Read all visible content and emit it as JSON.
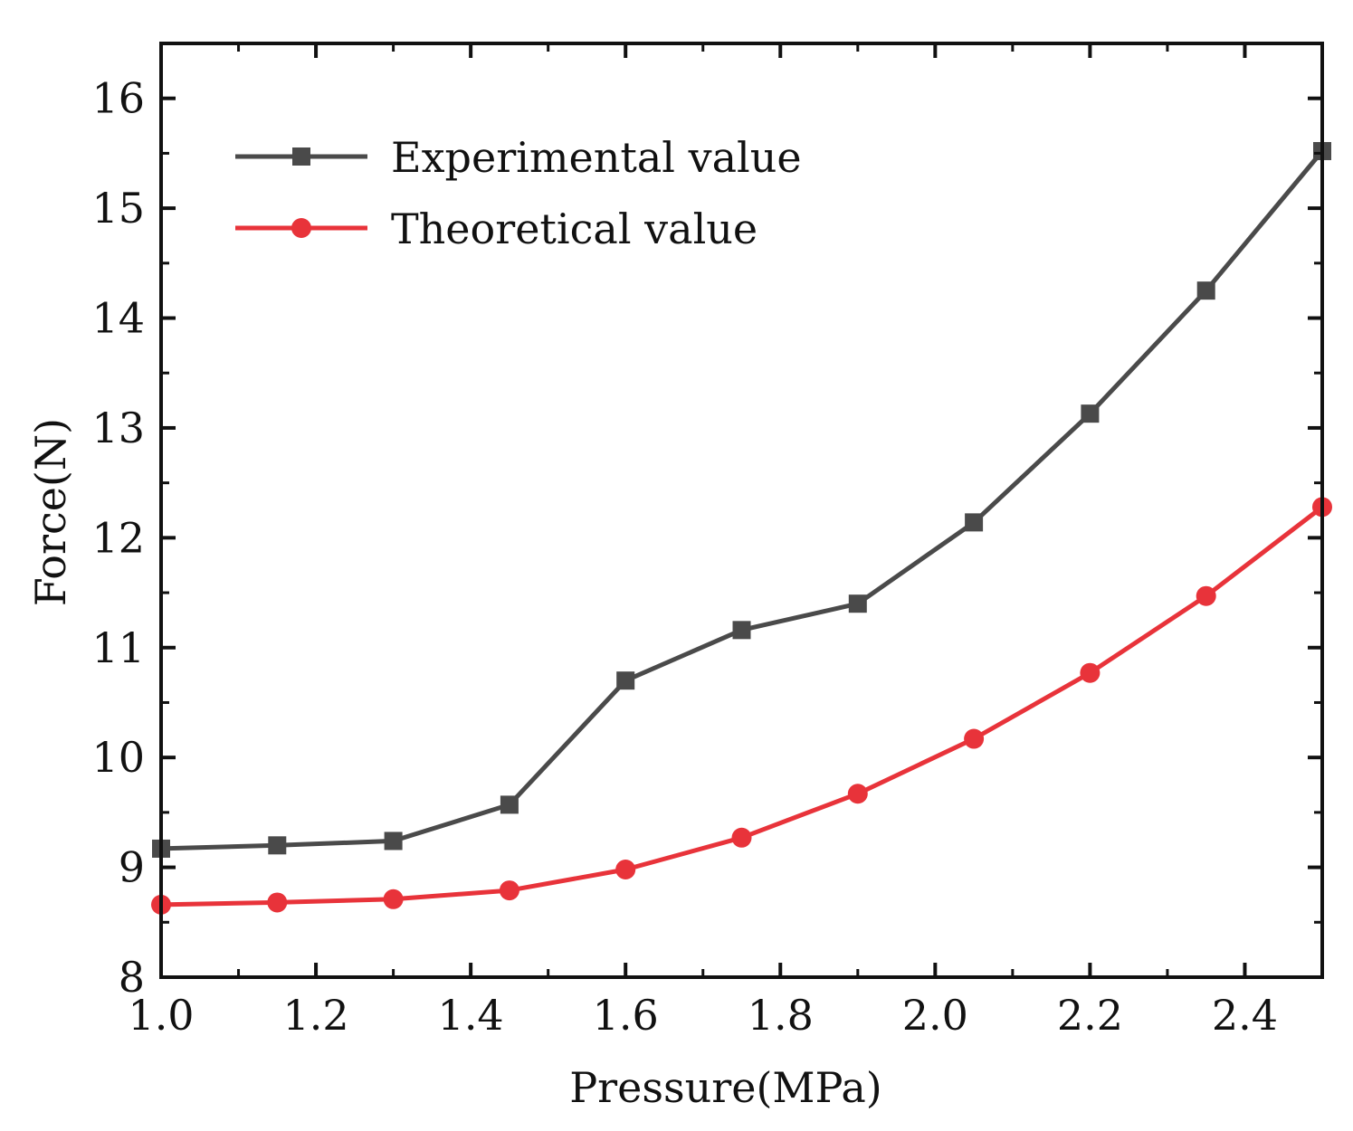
{
  "chart_data": {
    "type": "line",
    "xlabel": "Pressure(MPa)",
    "ylabel": "Force(N)",
    "xlim": [
      1.0,
      2.5
    ],
    "ylim": [
      8,
      16.5
    ],
    "xticks": [
      1.0,
      1.2,
      1.4,
      1.6,
      1.8,
      2.0,
      2.2,
      2.4
    ],
    "xtick_labels": [
      "1.0",
      "1.2",
      "1.4",
      "1.6",
      "1.8",
      "2.0",
      "2.2",
      "2.4"
    ],
    "yticks": [
      8,
      9,
      10,
      11,
      12,
      13,
      14,
      15,
      16
    ],
    "ytick_labels": [
      "8",
      "9",
      "10",
      "11",
      "12",
      "13",
      "14",
      "15",
      "16"
    ],
    "grid": false,
    "legend_position": "top-left",
    "x": [
      1.0,
      1.15,
      1.3,
      1.45,
      1.6,
      1.75,
      1.9,
      2.05,
      2.2,
      2.35,
      2.5
    ],
    "series": [
      {
        "name": "Experimental value",
        "color": "#4a4a4a",
        "marker": "square",
        "values": [
          9.17,
          9.2,
          9.24,
          9.57,
          10.7,
          11.16,
          11.4,
          12.14,
          13.13,
          14.25,
          15.52
        ]
      },
      {
        "name": "Theoretical value",
        "color": "#e8333a",
        "marker": "circle",
        "values": [
          8.66,
          8.68,
          8.71,
          8.79,
          8.98,
          9.27,
          9.67,
          10.17,
          10.77,
          11.47,
          12.28
        ]
      }
    ]
  }
}
